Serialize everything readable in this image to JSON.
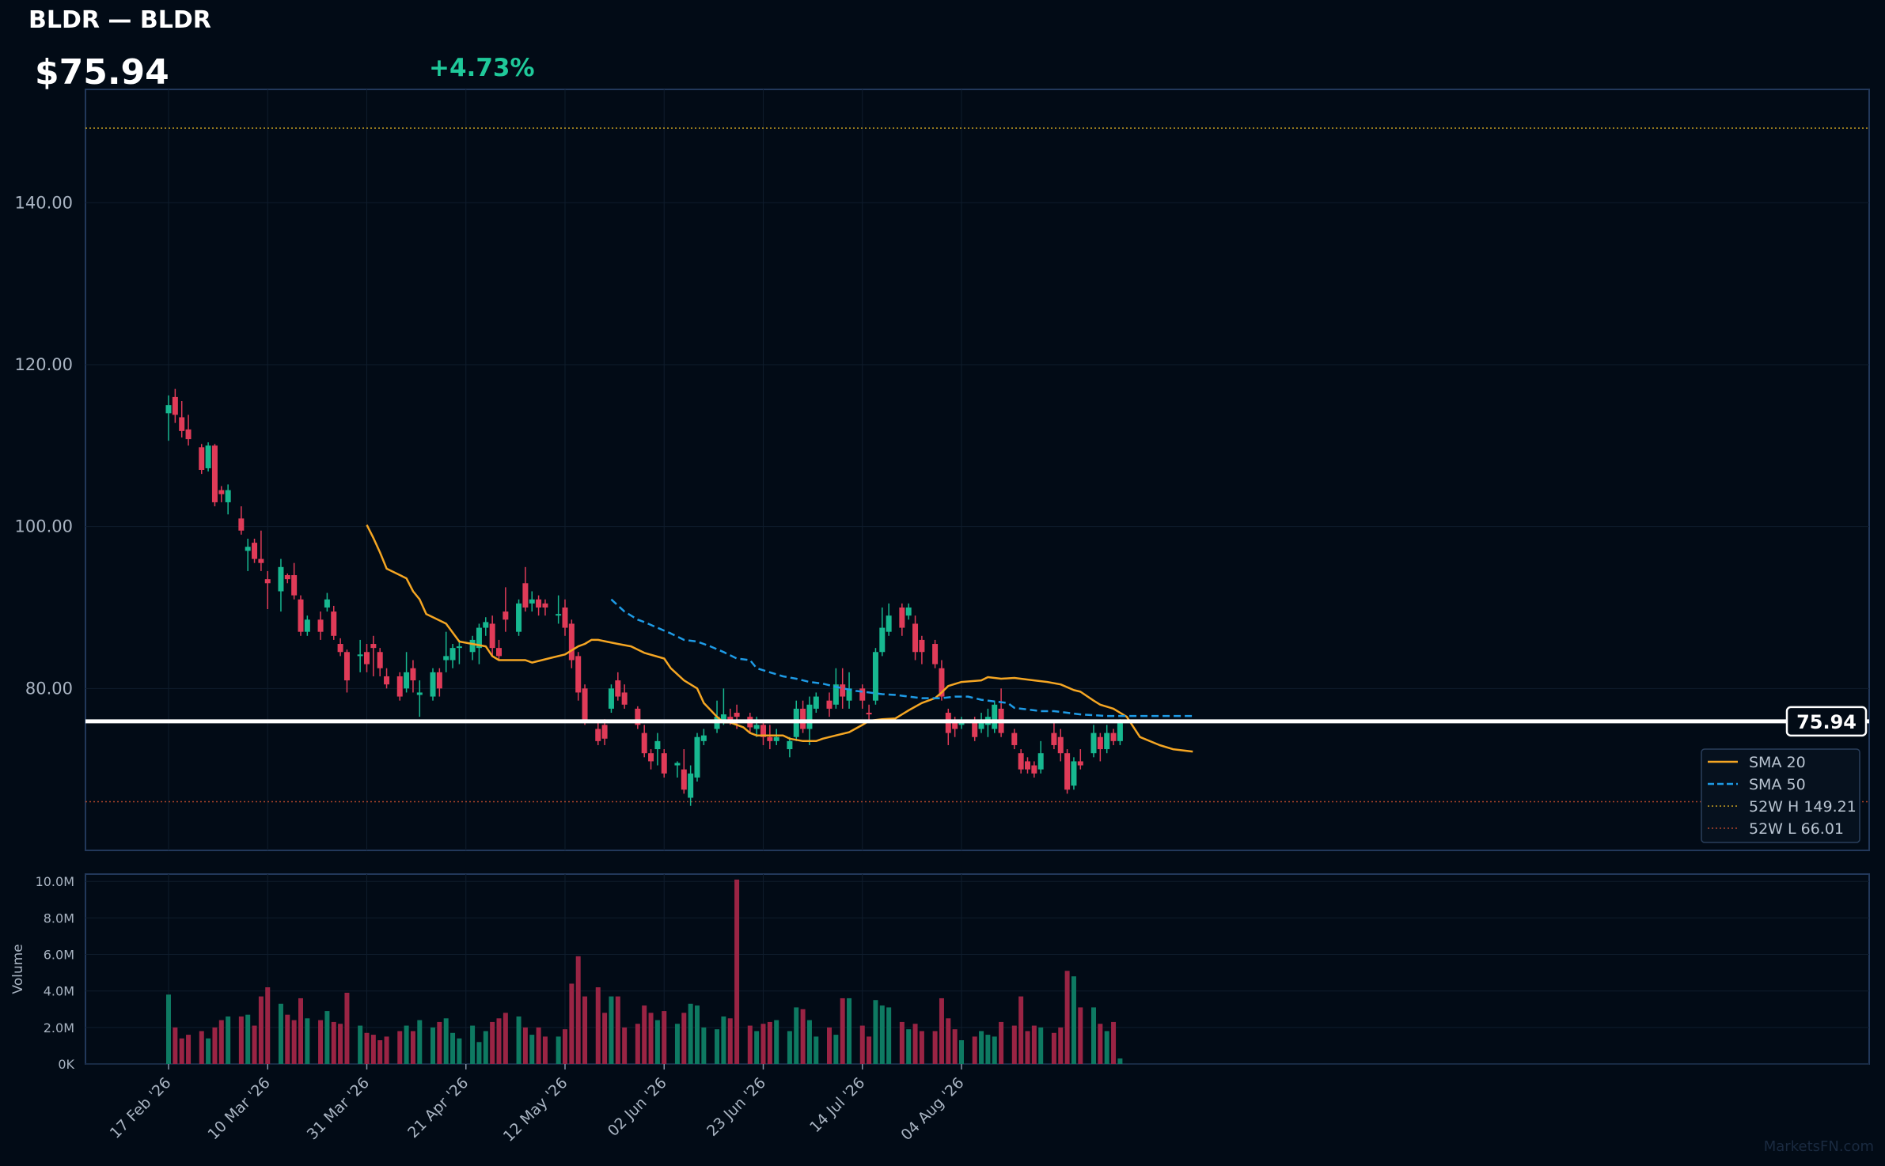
{
  "header": {
    "title": "BLDR — BLDR",
    "price": "$75.94",
    "change": "+4.73%"
  },
  "colors": {
    "up": "#17b890",
    "down": "#e03b58",
    "sma20": "#f5a623",
    "sma50": "#1e9be6",
    "hi": "#c8a020",
    "lo": "#b0452a",
    "panel_border": "#22385a",
    "bg": "#020b16"
  },
  "watermark": "MarketsFN.com",
  "chart_data": {
    "type": "candlestick",
    "price_axis": {
      "ticks": [
        "80.00",
        "100.00",
        "120.00",
        "140.00"
      ],
      "tick_values": [
        80,
        100,
        120,
        140
      ],
      "range": [
        60,
        154
      ]
    },
    "volume_axis": {
      "label": "Volume",
      "ticks": [
        "0K",
        "2.0M",
        "4.0M",
        "6.0M",
        "8.0M",
        "10.0M"
      ],
      "tick_values": [
        0,
        2,
        4,
        6,
        8,
        10
      ],
      "unit": "M",
      "range": [
        0,
        10.4
      ]
    },
    "x_ticks": [
      {
        "label": "17 Feb '26",
        "index": 0
      },
      {
        "label": "10 Mar '26",
        "index": 15
      },
      {
        "label": "31 Mar '26",
        "index": 30
      },
      {
        "label": "21 Apr '26",
        "index": 45
      },
      {
        "label": "12 May '26",
        "index": 60
      },
      {
        "label": "02 Jun '26",
        "index": 75
      },
      {
        "label": "23 Jun '26",
        "index": 90
      },
      {
        "label": "14 Jul '26",
        "index": 105
      },
      {
        "label": "04 Aug '26",
        "index": 120
      }
    ],
    "last_price": 75.94,
    "last_price_label": "75.94",
    "legend": [
      {
        "name": "SMA 20",
        "style": "solid",
        "key": "sma20"
      },
      {
        "name": "SMA 50",
        "style": "dashed",
        "key": "sma50"
      },
      {
        "name": "52W H 149.21",
        "style": "dotted",
        "key": "hi"
      },
      {
        "name": "52W L 66.01",
        "style": "dotted",
        "key": "lo"
      }
    ],
    "high_52w": 149.21,
    "low_52w": 66.01,
    "candles": [
      [
        114.0,
        115.0,
        110.6,
        116.2,
        3.8
      ],
      [
        116.0,
        113.8,
        112.8,
        117.0,
        2.0
      ],
      [
        113.5,
        111.8,
        111.0,
        115.5,
        1.4
      ],
      [
        112.0,
        110.8,
        110.0,
        113.8,
        1.6
      ],
      null,
      [
        109.8,
        107.0,
        106.5,
        110.2,
        1.8
      ],
      [
        107.2,
        110.0,
        106.8,
        110.4,
        1.4
      ],
      [
        110.0,
        103.0,
        102.5,
        110.2,
        2.0
      ],
      [
        104.5,
        104.0,
        103.0,
        105.0,
        2.4
      ],
      [
        103.0,
        104.5,
        101.5,
        105.2,
        2.6
      ],
      null,
      [
        101.0,
        99.5,
        99.0,
        102.5,
        2.6
      ],
      [
        97.0,
        97.5,
        94.5,
        98.5,
        2.7
      ],
      [
        98.0,
        96.0,
        95.5,
        98.5,
        2.1
      ],
      [
        96.0,
        95.5,
        94.5,
        99.5,
        3.7
      ],
      [
        93.5,
        93.0,
        89.8,
        94.5,
        4.2
      ],
      null,
      [
        92.0,
        95.0,
        89.5,
        96.0,
        3.3
      ],
      [
        94.0,
        93.5,
        93.0,
        94.2,
        2.7
      ],
      [
        94.0,
        91.5,
        91.0,
        95.5,
        2.4
      ],
      [
        91.0,
        87.0,
        86.5,
        91.5,
        3.6
      ],
      [
        87.0,
        88.5,
        86.5,
        89.0,
        2.5
      ],
      null,
      [
        88.5,
        87.0,
        86.0,
        89.5,
        2.4
      ],
      [
        90.0,
        91.0,
        89.5,
        91.8,
        2.9
      ],
      [
        89.5,
        86.5,
        86.0,
        90.2,
        2.3
      ],
      [
        85.5,
        84.5,
        84.0,
        86.2,
        2.2
      ],
      [
        84.5,
        81.0,
        79.5,
        84.8,
        3.9
      ],
      null,
      [
        84.0,
        84.2,
        82.0,
        86.0,
        2.1
      ],
      [
        84.5,
        83.0,
        82.0,
        85.5,
        1.7
      ],
      [
        85.5,
        85.0,
        81.5,
        86.5,
        1.6
      ],
      [
        84.5,
        82.5,
        81.5,
        85.0,
        1.3
      ],
      [
        81.5,
        80.5,
        80.0,
        82.5,
        1.5
      ],
      null,
      [
        81.5,
        79.0,
        78.5,
        82.0,
        1.8
      ],
      [
        80.0,
        82.0,
        79.5,
        84.5,
        2.1
      ],
      [
        82.5,
        81.0,
        79.5,
        83.5,
        1.8
      ],
      [
        79.2,
        79.5,
        76.5,
        81.0,
        2.4
      ],
      null,
      [
        79.0,
        82.0,
        78.5,
        82.5,
        2.0
      ],
      [
        82.0,
        80.0,
        79.0,
        82.5,
        2.3
      ],
      [
        83.5,
        84.0,
        82.0,
        87.0,
        2.5
      ],
      [
        83.5,
        85.0,
        82.5,
        85.5,
        1.7
      ],
      [
        85.0,
        85.2,
        83.0,
        86.0,
        1.4
      ],
      null,
      [
        84.5,
        86.0,
        83.5,
        86.5,
        2.1
      ],
      [
        85.0,
        87.5,
        83.0,
        88.0,
        1.2
      ],
      [
        87.5,
        88.2,
        86.5,
        88.8,
        1.8
      ],
      [
        88.0,
        85.0,
        84.0,
        89.0,
        2.3
      ],
      [
        85.0,
        84.0,
        83.5,
        86.0,
        2.5
      ],
      [
        89.5,
        88.5,
        87.0,
        92.5,
        2.8
      ],
      null,
      [
        87.0,
        90.5,
        86.5,
        91.0,
        2.6
      ],
      [
        93.0,
        90.0,
        89.5,
        95.0,
        2.0
      ],
      [
        90.5,
        91.0,
        89.5,
        92.0,
        1.6
      ],
      [
        91.0,
        90.0,
        89.0,
        91.5,
        2.0
      ],
      [
        90.5,
        90.0,
        89.0,
        91.0,
        1.5
      ],
      null,
      [
        89.0,
        89.2,
        88.0,
        91.5,
        1.5
      ],
      [
        90.0,
        87.5,
        86.5,
        91.0,
        1.9
      ],
      [
        88.0,
        83.5,
        82.5,
        88.5,
        4.4
      ],
      [
        84.0,
        79.5,
        78.5,
        84.5,
        5.9
      ],
      [
        80.0,
        76.0,
        75.5,
        80.5,
        3.7
      ],
      null,
      [
        75.0,
        73.5,
        73.0,
        76.0,
        4.2
      ],
      [
        75.5,
        73.8,
        73.0,
        76.2,
        2.8
      ],
      [
        77.5,
        80.0,
        77.0,
        80.5,
        3.7
      ],
      [
        81.0,
        79.0,
        78.5,
        82.0,
        3.7
      ],
      [
        79.5,
        78.0,
        77.5,
        80.5,
        2.0
      ],
      null,
      [
        77.5,
        75.5,
        75.0,
        77.8,
        2.2
      ],
      [
        74.5,
        72.0,
        71.5,
        75.5,
        3.2
      ],
      [
        72.0,
        71.0,
        70.0,
        72.5,
        2.8
      ],
      [
        72.5,
        73.5,
        70.5,
        74.5,
        2.4
      ],
      [
        72.0,
        69.5,
        69.0,
        72.5,
        2.9
      ],
      null,
      [
        70.5,
        70.8,
        69.0,
        71.0,
        2.2
      ],
      [
        70.0,
        67.5,
        67.0,
        72.5,
        2.8
      ],
      [
        66.5,
        69.5,
        65.5,
        70.5,
        3.3
      ],
      [
        69.0,
        74.0,
        68.5,
        74.5,
        3.2
      ],
      [
        73.5,
        74.2,
        73.0,
        75.0,
        2.0
      ],
      null,
      [
        75.0,
        76.5,
        74.5,
        78.5,
        1.9
      ],
      [
        76.0,
        76.8,
        75.5,
        80.0,
        2.6
      ],
      [
        76.5,
        76.0,
        75.5,
        77.5,
        2.5
      ],
      [
        77.0,
        76.5,
        75.0,
        78.0,
        10.1
      ],
      null,
      [
        76.5,
        75.2,
        74.5,
        77.0,
        2.1
      ],
      [
        75.0,
        75.5,
        74.0,
        76.5,
        1.8
      ],
      [
        75.5,
        74.0,
        73.0,
        76.0,
        2.2
      ],
      [
        74.0,
        73.5,
        72.5,
        75.5,
        2.3
      ],
      [
        73.5,
        74.0,
        73.0,
        75.0,
        2.4
      ],
      null,
      [
        72.5,
        73.5,
        71.5,
        74.0,
        1.8
      ],
      [
        74.0,
        77.5,
        73.5,
        78.5,
        3.1
      ],
      [
        77.5,
        75.0,
        74.5,
        78.5,
        3.0
      ],
      [
        75.0,
        78.0,
        73.0,
        79.0,
        2.4
      ],
      [
        77.5,
        79.0,
        77.0,
        79.5,
        1.5
      ],
      null,
      [
        78.5,
        77.5,
        76.5,
        79.5,
        2.0
      ],
      [
        78.0,
        80.5,
        77.5,
        82.5,
        1.6
      ],
      [
        80.5,
        79.0,
        77.5,
        82.5,
        3.6
      ],
      [
        78.5,
        80.0,
        77.5,
        82.0,
        3.6
      ],
      null,
      [
        80.0,
        78.5,
        77.5,
        80.5,
        2.1
      ],
      [
        77.0,
        76.8,
        76.0,
        78.0,
        1.5
      ],
      [
        78.5,
        84.5,
        78.0,
        85.0,
        3.5
      ],
      [
        84.5,
        87.5,
        84.0,
        90.0,
        3.2
      ],
      [
        87.0,
        89.0,
        86.5,
        90.5,
        3.1
      ],
      null,
      [
        90.0,
        87.5,
        86.5,
        90.5,
        2.3
      ],
      [
        89.0,
        90.0,
        88.5,
        90.5,
        1.9
      ],
      [
        88.0,
        84.5,
        83.5,
        89.0,
        2.2
      ],
      [
        86.0,
        84.5,
        83.0,
        86.5,
        1.8
      ],
      null,
      [
        85.5,
        83.0,
        82.5,
        86.0,
        1.8
      ],
      [
        82.5,
        79.0,
        78.5,
        83.5,
        3.6
      ],
      [
        77.0,
        74.5,
        73.0,
        77.5,
        2.5
      ],
      [
        76.0,
        75.0,
        74.0,
        76.5,
        1.9
      ],
      [
        75.5,
        76.0,
        75.0,
        76.5,
        1.3
      ],
      null,
      [
        76.0,
        74.0,
        73.5,
        76.5,
        1.5
      ],
      [
        75.0,
        76.0,
        74.5,
        77.0,
        1.8
      ],
      [
        75.5,
        76.5,
        74.0,
        77.5,
        1.6
      ],
      [
        75.0,
        78.0,
        74.5,
        78.5,
        1.5
      ],
      [
        77.5,
        74.5,
        74.0,
        80.0,
        2.3
      ],
      null,
      [
        74.5,
        73.0,
        72.5,
        75.0,
        2.1
      ],
      [
        72.0,
        70.0,
        69.5,
        72.5,
        3.7
      ],
      [
        71.0,
        70.0,
        69.5,
        71.5,
        1.8
      ],
      [
        70.5,
        69.5,
        69.0,
        71.0,
        2.1
      ],
      [
        70.0,
        72.0,
        69.5,
        73.5,
        2.0
      ],
      null,
      [
        74.5,
        73.0,
        72.5,
        76.0,
        1.7
      ],
      [
        74.0,
        72.0,
        71.0,
        75.0,
        2.0
      ],
      [
        72.0,
        67.5,
        67.0,
        72.5,
        5.1
      ],
      [
        68.0,
        71.0,
        67.5,
        71.5,
        4.8
      ],
      [
        71.0,
        70.5,
        70.0,
        72.5,
        3.1
      ],
      null,
      [
        72.0,
        74.5,
        71.5,
        75.5,
        3.1
      ],
      [
        74.0,
        72.5,
        71.0,
        74.5,
        2.2
      ],
      [
        72.5,
        74.5,
        72.0,
        75.5,
        1.8
      ],
      [
        74.5,
        73.5,
        73.0,
        75.0,
        2.3
      ],
      [
        73.5,
        75.94,
        73.0,
        76.2,
        0.3
      ]
    ],
    "sma20": [
      [
        30,
        100.2
      ],
      [
        31,
        98.6
      ],
      [
        32,
        96.8
      ],
      [
        33,
        94.8
      ],
      [
        35,
        94.0
      ],
      [
        36,
        93.6
      ],
      [
        37,
        92.0
      ],
      [
        38,
        91.0
      ],
      [
        39,
        89.2
      ],
      [
        40,
        88.8
      ],
      [
        42,
        88.0
      ],
      [
        44,
        85.8
      ],
      [
        48,
        85.2
      ],
      [
        49,
        84.0
      ],
      [
        50,
        83.5
      ],
      [
        53,
        83.5
      ],
      [
        54,
        83.5
      ],
      [
        55,
        83.2
      ],
      [
        58,
        83.8
      ],
      [
        60,
        84.2
      ],
      [
        62,
        85.2
      ],
      [
        63,
        85.5
      ],
      [
        64,
        86.0
      ],
      [
        65,
        86.0
      ],
      [
        68,
        85.5
      ],
      [
        70,
        85.2
      ],
      [
        72,
        84.4
      ],
      [
        75,
        83.7
      ],
      [
        76,
        82.5
      ],
      [
        78,
        81.0
      ],
      [
        80,
        80.0
      ],
      [
        81,
        78.2
      ],
      [
        83,
        76.5
      ],
      [
        84,
        75.8
      ],
      [
        85,
        75.8
      ],
      [
        87,
        75.2
      ],
      [
        88,
        74.5
      ],
      [
        89,
        74.2
      ],
      [
        93,
        74.2
      ],
      [
        94,
        73.8
      ],
      [
        96,
        73.5
      ],
      [
        98,
        73.5
      ],
      [
        99,
        73.8
      ],
      [
        101,
        74.2
      ],
      [
        103,
        74.6
      ],
      [
        105,
        75.5
      ],
      [
        106,
        76.0
      ],
      [
        108,
        76.2
      ],
      [
        110,
        76.3
      ],
      [
        112,
        77.3
      ],
      [
        114,
        78.2
      ],
      [
        116,
        78.8
      ],
      [
        117,
        79.5
      ],
      [
        118,
        80.3
      ],
      [
        120,
        80.8
      ],
      [
        123,
        81.0
      ],
      [
        124,
        81.4
      ],
      [
        126,
        81.2
      ],
      [
        128,
        81.3
      ],
      [
        131,
        81.0
      ],
      [
        133,
        80.8
      ],
      [
        135,
        80.5
      ],
      [
        137,
        79.8
      ],
      [
        138,
        79.6
      ],
      [
        140,
        78.5
      ],
      [
        141,
        78.0
      ],
      [
        143,
        77.5
      ],
      [
        145,
        76.5
      ],
      [
        147,
        74.0
      ],
      [
        150,
        73.0
      ],
      [
        152,
        72.5
      ],
      [
        155,
        72.2
      ]
    ],
    "sma50": [
      [
        67,
        91.0
      ],
      [
        69,
        89.5
      ],
      [
        71,
        88.5
      ],
      [
        72,
        88.2
      ],
      [
        74,
        87.5
      ],
      [
        76,
        86.8
      ],
      [
        78,
        86.0
      ],
      [
        80,
        85.8
      ],
      [
        82,
        85.2
      ],
      [
        84,
        84.5
      ],
      [
        86,
        83.7
      ],
      [
        88,
        83.5
      ],
      [
        89,
        82.5
      ],
      [
        91,
        82.0
      ],
      [
        93,
        81.5
      ],
      [
        95,
        81.2
      ],
      [
        97,
        80.8
      ],
      [
        99,
        80.6
      ],
      [
        101,
        80.2
      ],
      [
        104,
        79.7
      ],
      [
        106,
        79.5
      ],
      [
        108,
        79.3
      ],
      [
        110,
        79.2
      ],
      [
        112,
        79.0
      ],
      [
        114,
        78.8
      ],
      [
        116,
        78.8
      ],
      [
        117,
        78.8
      ],
      [
        119,
        79.0
      ],
      [
        121,
        79.0
      ],
      [
        123,
        78.6
      ],
      [
        125,
        78.4
      ],
      [
        127,
        78.2
      ],
      [
        128,
        77.6
      ],
      [
        130,
        77.4
      ],
      [
        132,
        77.2
      ],
      [
        134,
        77.2
      ],
      [
        136,
        77.0
      ],
      [
        138,
        76.8
      ],
      [
        140,
        76.7
      ],
      [
        142,
        76.6
      ],
      [
        146,
        76.6
      ],
      [
        150,
        76.6
      ],
      [
        155,
        76.6
      ]
    ]
  }
}
